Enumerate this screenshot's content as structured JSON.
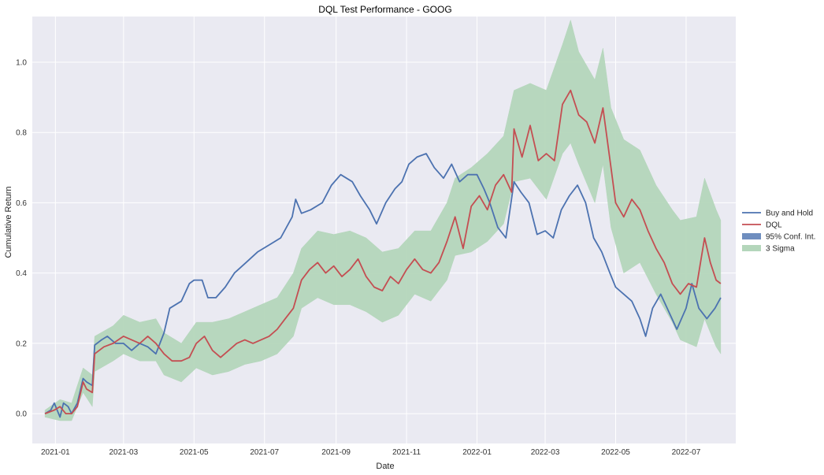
{
  "chart_data": {
    "type": "line",
    "title": "DQL Test Performance - GOOG",
    "xlabel": "Date",
    "ylabel": "Cumulative Return",
    "xlim": [
      "2020-12-12",
      "2022-08-13"
    ],
    "ylim": [
      -0.085,
      1.13
    ],
    "grid": true,
    "legend_position": "right-center",
    "x_ticks": [
      {
        "date": "2021-01-01",
        "label": "2021-01"
      },
      {
        "date": "2021-03-01",
        "label": "2021-03"
      },
      {
        "date": "2021-05-01",
        "label": "2021-05"
      },
      {
        "date": "2021-07-01",
        "label": "2021-07"
      },
      {
        "date": "2021-09-01",
        "label": "2021-09"
      },
      {
        "date": "2021-11-01",
        "label": "2021-11"
      },
      {
        "date": "2022-01-01",
        "label": "2022-01"
      },
      {
        "date": "2022-03-01",
        "label": "2022-03"
      },
      {
        "date": "2022-05-01",
        "label": "2022-05"
      },
      {
        "date": "2022-07-01",
        "label": "2022-07"
      }
    ],
    "y_ticks": [
      {
        "value": 0.0,
        "label": "0.0"
      },
      {
        "value": 0.2,
        "label": "0.2"
      },
      {
        "value": 0.4,
        "label": "0.4"
      },
      {
        "value": 0.6,
        "label": "0.6"
      },
      {
        "value": 0.8,
        "label": "0.8"
      },
      {
        "value": 1.0,
        "label": "1.0"
      }
    ],
    "legend": [
      {
        "label": "Buy and Hold",
        "kind": "line",
        "color": "#4c72b0"
      },
      {
        "label": "DQL",
        "kind": "line",
        "color": "#c44e52"
      },
      {
        "label": "95% Conf. Int.",
        "kind": "patch",
        "color": "#6f8ebf"
      },
      {
        "label": "3 Sigma",
        "kind": "patch",
        "color": "#b4d6bb"
      }
    ],
    "series": [
      {
        "name": "Buy and Hold",
        "color": "#4c72b0",
        "points": [
          [
            "2020-12-23",
            0.0
          ],
          [
            "2020-12-28",
            0.01
          ],
          [
            "2020-12-31",
            0.03
          ],
          [
            "2021-01-05",
            -0.01
          ],
          [
            "2021-01-08",
            0.03
          ],
          [
            "2021-01-12",
            0.02
          ],
          [
            "2021-01-15",
            0.0
          ],
          [
            "2021-01-20",
            0.03
          ],
          [
            "2021-01-25",
            0.1
          ],
          [
            "2021-01-28",
            0.09
          ],
          [
            "2021-02-02",
            0.08
          ],
          [
            "2021-02-04",
            0.195
          ],
          [
            "2021-02-10",
            0.21
          ],
          [
            "2021-02-15",
            0.22
          ],
          [
            "2021-02-22",
            0.2
          ],
          [
            "2021-03-01",
            0.2
          ],
          [
            "2021-03-08",
            0.18
          ],
          [
            "2021-03-15",
            0.2
          ],
          [
            "2021-03-22",
            0.19
          ],
          [
            "2021-03-29",
            0.17
          ],
          [
            "2021-04-05",
            0.23
          ],
          [
            "2021-04-10",
            0.3
          ],
          [
            "2021-04-20",
            0.32
          ],
          [
            "2021-04-27",
            0.37
          ],
          [
            "2021-05-01",
            0.38
          ],
          [
            "2021-05-08",
            0.38
          ],
          [
            "2021-05-13",
            0.33
          ],
          [
            "2021-05-20",
            0.33
          ],
          [
            "2021-05-28",
            0.36
          ],
          [
            "2021-06-05",
            0.4
          ],
          [
            "2021-06-15",
            0.43
          ],
          [
            "2021-06-25",
            0.46
          ],
          [
            "2021-07-05",
            0.48
          ],
          [
            "2021-07-15",
            0.5
          ],
          [
            "2021-07-25",
            0.56
          ],
          [
            "2021-07-28",
            0.61
          ],
          [
            "2021-08-02",
            0.57
          ],
          [
            "2021-08-10",
            0.58
          ],
          [
            "2021-08-20",
            0.6
          ],
          [
            "2021-08-28",
            0.65
          ],
          [
            "2021-09-05",
            0.68
          ],
          [
            "2021-09-15",
            0.66
          ],
          [
            "2021-09-22",
            0.62
          ],
          [
            "2021-09-30",
            0.58
          ],
          [
            "2021-10-06",
            0.54
          ],
          [
            "2021-10-14",
            0.6
          ],
          [
            "2021-10-22",
            0.64
          ],
          [
            "2021-10-28",
            0.66
          ],
          [
            "2021-11-03",
            0.71
          ],
          [
            "2021-11-10",
            0.73
          ],
          [
            "2021-11-18",
            0.74
          ],
          [
            "2021-11-25",
            0.7
          ],
          [
            "2021-12-03",
            0.67
          ],
          [
            "2021-12-10",
            0.71
          ],
          [
            "2021-12-17",
            0.66
          ],
          [
            "2021-12-24",
            0.68
          ],
          [
            "2022-01-01",
            0.68
          ],
          [
            "2022-01-07",
            0.64
          ],
          [
            "2022-01-12",
            0.6
          ],
          [
            "2022-01-19",
            0.53
          ],
          [
            "2022-01-26",
            0.5
          ],
          [
            "2022-02-02",
            0.66
          ],
          [
            "2022-02-08",
            0.63
          ],
          [
            "2022-02-15",
            0.6
          ],
          [
            "2022-02-22",
            0.51
          ],
          [
            "2022-03-01",
            0.52
          ],
          [
            "2022-03-08",
            0.5
          ],
          [
            "2022-03-15",
            0.58
          ],
          [
            "2022-03-22",
            0.62
          ],
          [
            "2022-03-29",
            0.65
          ],
          [
            "2022-04-05",
            0.6
          ],
          [
            "2022-04-12",
            0.5
          ],
          [
            "2022-04-19",
            0.46
          ],
          [
            "2022-04-26",
            0.4
          ],
          [
            "2022-05-01",
            0.36
          ],
          [
            "2022-05-08",
            0.34
          ],
          [
            "2022-05-15",
            0.32
          ],
          [
            "2022-05-22",
            0.27
          ],
          [
            "2022-05-27",
            0.22
          ],
          [
            "2022-06-02",
            0.3
          ],
          [
            "2022-06-09",
            0.34
          ],
          [
            "2022-06-16",
            0.29
          ],
          [
            "2022-06-23",
            0.24
          ],
          [
            "2022-07-01",
            0.3
          ],
          [
            "2022-07-06",
            0.37
          ],
          [
            "2022-07-12",
            0.3
          ],
          [
            "2022-07-19",
            0.27
          ],
          [
            "2022-07-26",
            0.3
          ],
          [
            "2022-07-31",
            0.33
          ]
        ]
      },
      {
        "name": "DQL",
        "color": "#c44e52",
        "points": [
          [
            "2020-12-23",
            0.0
          ],
          [
            "2020-12-31",
            0.01
          ],
          [
            "2021-01-05",
            0.02
          ],
          [
            "2021-01-10",
            0.0
          ],
          [
            "2021-01-15",
            0.0
          ],
          [
            "2021-01-20",
            0.02
          ],
          [
            "2021-01-25",
            0.09
          ],
          [
            "2021-01-28",
            0.07
          ],
          [
            "2021-02-02",
            0.06
          ],
          [
            "2021-02-04",
            0.17
          ],
          [
            "2021-02-12",
            0.19
          ],
          [
            "2021-02-20",
            0.2
          ],
          [
            "2021-03-01",
            0.22
          ],
          [
            "2021-03-08",
            0.21
          ],
          [
            "2021-03-15",
            0.2
          ],
          [
            "2021-03-22",
            0.22
          ],
          [
            "2021-03-29",
            0.2
          ],
          [
            "2021-04-05",
            0.17
          ],
          [
            "2021-04-12",
            0.15
          ],
          [
            "2021-04-20",
            0.15
          ],
          [
            "2021-04-27",
            0.16
          ],
          [
            "2021-05-03",
            0.2
          ],
          [
            "2021-05-10",
            0.22
          ],
          [
            "2021-05-17",
            0.18
          ],
          [
            "2021-05-24",
            0.16
          ],
          [
            "2021-05-31",
            0.18
          ],
          [
            "2021-06-07",
            0.2
          ],
          [
            "2021-06-14",
            0.21
          ],
          [
            "2021-06-21",
            0.2
          ],
          [
            "2021-06-28",
            0.21
          ],
          [
            "2021-07-05",
            0.22
          ],
          [
            "2021-07-12",
            0.24
          ],
          [
            "2021-07-19",
            0.27
          ],
          [
            "2021-07-26",
            0.3
          ],
          [
            "2021-08-02",
            0.38
          ],
          [
            "2021-08-09",
            0.41
          ],
          [
            "2021-08-16",
            0.43
          ],
          [
            "2021-08-23",
            0.4
          ],
          [
            "2021-08-30",
            0.42
          ],
          [
            "2021-09-06",
            0.39
          ],
          [
            "2021-09-13",
            0.41
          ],
          [
            "2021-09-20",
            0.44
          ],
          [
            "2021-09-27",
            0.39
          ],
          [
            "2021-10-04",
            0.36
          ],
          [
            "2021-10-11",
            0.35
          ],
          [
            "2021-10-18",
            0.39
          ],
          [
            "2021-10-25",
            0.37
          ],
          [
            "2021-11-01",
            0.41
          ],
          [
            "2021-11-08",
            0.44
          ],
          [
            "2021-11-15",
            0.41
          ],
          [
            "2021-11-22",
            0.4
          ],
          [
            "2021-11-29",
            0.43
          ],
          [
            "2021-12-06",
            0.49
          ],
          [
            "2021-12-13",
            0.56
          ],
          [
            "2021-12-20",
            0.47
          ],
          [
            "2021-12-27",
            0.59
          ],
          [
            "2022-01-03",
            0.62
          ],
          [
            "2022-01-10",
            0.58
          ],
          [
            "2022-01-17",
            0.65
          ],
          [
            "2022-01-24",
            0.68
          ],
          [
            "2022-01-31",
            0.63
          ],
          [
            "2022-02-02",
            0.81
          ],
          [
            "2022-02-09",
            0.73
          ],
          [
            "2022-02-16",
            0.82
          ],
          [
            "2022-02-23",
            0.72
          ],
          [
            "2022-03-02",
            0.74
          ],
          [
            "2022-03-09",
            0.72
          ],
          [
            "2022-03-16",
            0.88
          ],
          [
            "2022-03-23",
            0.92
          ],
          [
            "2022-03-30",
            0.85
          ],
          [
            "2022-04-06",
            0.83
          ],
          [
            "2022-04-13",
            0.77
          ],
          [
            "2022-04-20",
            0.87
          ],
          [
            "2022-04-27",
            0.7
          ],
          [
            "2022-05-01",
            0.6
          ],
          [
            "2022-05-08",
            0.56
          ],
          [
            "2022-05-15",
            0.61
          ],
          [
            "2022-05-22",
            0.58
          ],
          [
            "2022-05-29",
            0.52
          ],
          [
            "2022-06-05",
            0.47
          ],
          [
            "2022-06-12",
            0.43
          ],
          [
            "2022-06-19",
            0.37
          ],
          [
            "2022-06-26",
            0.34
          ],
          [
            "2022-07-03",
            0.37
          ],
          [
            "2022-07-10",
            0.36
          ],
          [
            "2022-07-17",
            0.5
          ],
          [
            "2022-07-22",
            0.43
          ],
          [
            "2022-07-27",
            0.38
          ],
          [
            "2022-07-31",
            0.37
          ]
        ]
      }
    ],
    "bands": [
      {
        "name": "3 Sigma",
        "color": "#b4d6bb",
        "points": [
          [
            "2020-12-23",
            -0.01,
            0.01
          ],
          [
            "2021-01-05",
            -0.02,
            0.04
          ],
          [
            "2021-01-15",
            -0.02,
            0.03
          ],
          [
            "2021-01-25",
            0.06,
            0.13
          ],
          [
            "2021-02-02",
            0.02,
            0.11
          ],
          [
            "2021-02-04",
            0.12,
            0.22
          ],
          [
            "2021-02-20",
            0.15,
            0.25
          ],
          [
            "2021-03-01",
            0.17,
            0.28
          ],
          [
            "2021-03-15",
            0.15,
            0.26
          ],
          [
            "2021-03-29",
            0.15,
            0.27
          ],
          [
            "2021-04-05",
            0.11,
            0.23
          ],
          [
            "2021-04-20",
            0.09,
            0.2
          ],
          [
            "2021-05-03",
            0.13,
            0.26
          ],
          [
            "2021-05-17",
            0.11,
            0.26
          ],
          [
            "2021-05-31",
            0.12,
            0.27
          ],
          [
            "2021-06-14",
            0.14,
            0.29
          ],
          [
            "2021-06-28",
            0.15,
            0.31
          ],
          [
            "2021-07-12",
            0.17,
            0.33
          ],
          [
            "2021-07-26",
            0.22,
            0.4
          ],
          [
            "2021-08-02",
            0.3,
            0.47
          ],
          [
            "2021-08-16",
            0.33,
            0.52
          ],
          [
            "2021-08-30",
            0.31,
            0.51
          ],
          [
            "2021-09-13",
            0.31,
            0.52
          ],
          [
            "2021-09-27",
            0.29,
            0.5
          ],
          [
            "2021-10-11",
            0.26,
            0.46
          ],
          [
            "2021-10-25",
            0.28,
            0.47
          ],
          [
            "2021-11-08",
            0.34,
            0.52
          ],
          [
            "2021-11-22",
            0.32,
            0.52
          ],
          [
            "2021-12-06",
            0.38,
            0.6
          ],
          [
            "2021-12-13",
            0.45,
            0.67
          ],
          [
            "2021-12-27",
            0.46,
            0.7
          ],
          [
            "2022-01-10",
            0.49,
            0.74
          ],
          [
            "2022-01-24",
            0.54,
            0.79
          ],
          [
            "2022-02-02",
            0.66,
            0.92
          ],
          [
            "2022-02-16",
            0.67,
            0.94
          ],
          [
            "2022-03-02",
            0.61,
            0.92
          ],
          [
            "2022-03-16",
            0.74,
            1.05
          ],
          [
            "2022-03-23",
            0.77,
            1.12
          ],
          [
            "2022-03-30",
            0.71,
            1.03
          ],
          [
            "2022-04-13",
            0.6,
            0.95
          ],
          [
            "2022-04-20",
            0.71,
            1.04
          ],
          [
            "2022-04-27",
            0.53,
            0.87
          ],
          [
            "2022-05-08",
            0.4,
            0.78
          ],
          [
            "2022-05-22",
            0.43,
            0.75
          ],
          [
            "2022-06-05",
            0.34,
            0.65
          ],
          [
            "2022-06-19",
            0.26,
            0.58
          ],
          [
            "2022-06-26",
            0.21,
            0.55
          ],
          [
            "2022-07-10",
            0.19,
            0.56
          ],
          [
            "2022-07-17",
            0.27,
            0.67
          ],
          [
            "2022-07-27",
            0.19,
            0.58
          ],
          [
            "2022-07-31",
            0.17,
            0.55
          ]
        ]
      }
    ]
  }
}
